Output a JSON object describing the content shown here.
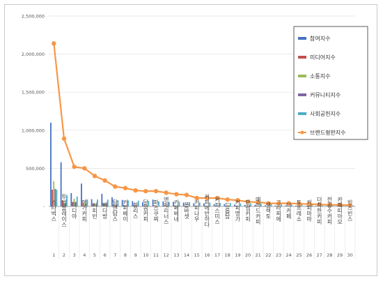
{
  "chart_data": {
    "type": "bar",
    "title": "",
    "xlabel": "",
    "ylabel": "",
    "ylim": [
      0,
      2500000
    ],
    "yticks": [
      "-",
      "500,000",
      "1,000,000",
      "1,500,000",
      "2,000,000",
      "2,500,000"
    ],
    "grid": true,
    "legend_position": "right",
    "categories": [
      "스타벅스",
      "투썸플레이스",
      "이디야",
      "메가커피",
      "커피빈",
      "빽다방",
      "탐앤탐스",
      "커피베이",
      "할리스",
      "달콤커피",
      "파스쿠찌",
      "엔제리너스",
      "카페베네",
      "폴바셋",
      "커피나우",
      "커피에반하다",
      "커피스미스",
      "드롭탑",
      "커피명가",
      "만랩커피",
      "매머드커피",
      "셀렉토",
      "그라찌에",
      "더카페",
      "토프레소",
      "커피마마",
      "더착한커피",
      "전광수커피",
      "카페띠아모",
      "빈스빈스"
    ],
    "index_labels": [
      "1",
      "2",
      "3",
      "4",
      "5",
      "6",
      "7",
      "8",
      "9",
      "10",
      "11",
      "12",
      "13",
      "14",
      "15",
      "16",
      "17",
      "18",
      "19",
      "20",
      "21",
      "22",
      "23",
      "24",
      "25",
      "26",
      "27",
      "28",
      "29",
      "30"
    ],
    "series": [
      {
        "name": "참여지수",
        "color": "#4472c4",
        "values": [
          1100000,
          580000,
          175000,
          300000,
          95000,
          165000,
          120000,
          85000,
          70000,
          55000,
          90000,
          65000,
          60000,
          50000,
          40000,
          40000,
          30000,
          30000,
          25000,
          20000,
          18000,
          15000,
          12000,
          12000,
          10000,
          8000,
          8000,
          6000,
          6000,
          5000
        ]
      },
      {
        "name": "미디어지수",
        "color": "#c0504d",
        "values": [
          220000,
          80000,
          60000,
          40000,
          35000,
          30000,
          25000,
          20000,
          20000,
          15000,
          15000,
          12000,
          12000,
          10000,
          8000,
          8000,
          7000,
          6000,
          5000,
          5000,
          4000,
          4000,
          3000,
          3000,
          3000,
          2000,
          2000,
          2000,
          2000,
          1000
        ]
      },
      {
        "name": "소통지수",
        "color": "#9bbb59",
        "values": [
          330000,
          50000,
          100000,
          40000,
          30000,
          35000,
          20000,
          15000,
          15000,
          12000,
          12000,
          10000,
          10000,
          8000,
          6000,
          6000,
          5000,
          5000,
          4000,
          4000,
          3000,
          3000,
          3000,
          2000,
          2000,
          2000,
          2000,
          1000,
          1000,
          1000
        ]
      },
      {
        "name": "커뮤니티지수",
        "color": "#8064a2",
        "values": [
          230000,
          40000,
          60000,
          30000,
          25000,
          25000,
          20000,
          15000,
          15000,
          12000,
          10000,
          10000,
          10000,
          8000,
          6000,
          6000,
          5000,
          5000,
          4000,
          4000,
          3000,
          3000,
          3000,
          2000,
          2000,
          2000,
          2000,
          1000,
          1000,
          1000
        ]
      },
      {
        "name": "사회공헌지수",
        "color": "#4bacc6",
        "values": [
          220000,
          150000,
          130000,
          90000,
          90000,
          90000,
          80000,
          80000,
          75000,
          70000,
          65000,
          60000,
          60000,
          55000,
          50000,
          50000,
          45000,
          45000,
          40000,
          40000,
          35000,
          30000,
          25000,
          25000,
          25000,
          20000,
          20000,
          18000,
          15000,
          12000
        ]
      },
      {
        "name": "브랜드평판지수",
        "color": "#f79646",
        "type": "line",
        "values": [
          2140000,
          890000,
          520000,
          500000,
          400000,
          340000,
          260000,
          240000,
          210000,
          200000,
          200000,
          180000,
          160000,
          150000,
          110000,
          110000,
          110000,
          90000,
          80000,
          60000,
          55000,
          40000,
          40000,
          40000,
          35000,
          30000,
          25000,
          20000,
          20000,
          15000
        ]
      }
    ]
  }
}
